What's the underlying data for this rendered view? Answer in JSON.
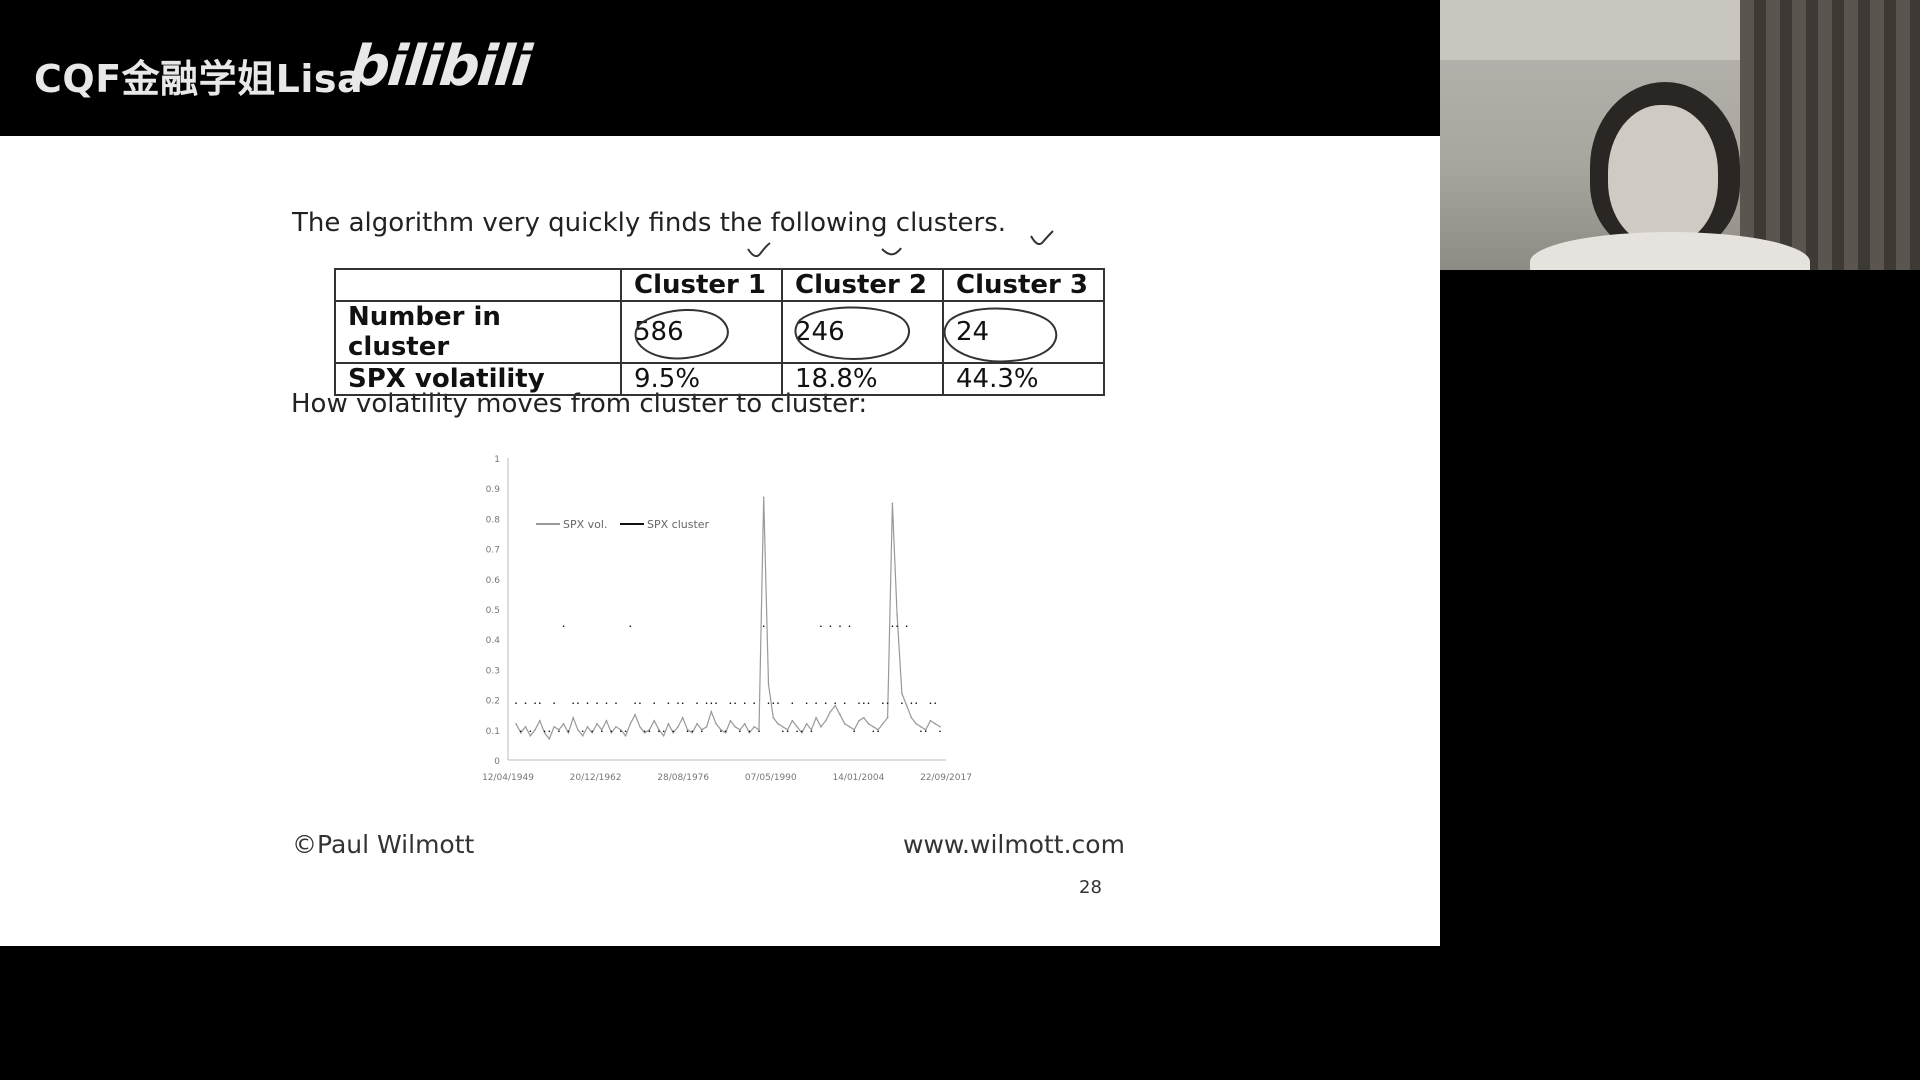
{
  "channel": {
    "name": "CQF金融学姐Lisa",
    "logo": "bilibili"
  },
  "slide": {
    "intro": "The algorithm very quickly finds the following clusters.",
    "table": {
      "headers": [
        "",
        "Cluster 1",
        "Cluster 2",
        "Cluster 3"
      ],
      "rows": [
        [
          "Number in cluster",
          "586",
          "246",
          "24"
        ],
        [
          "SPX volatility",
          "9.5%",
          "18.8%",
          "44.3%"
        ]
      ]
    },
    "subheading": "How volatility moves from cluster to cluster:",
    "footer_left": "©Paul Wilmott",
    "footer_right": "www.wilmott.com",
    "page_number": "28"
  },
  "chart_data": {
    "type": "line",
    "title": "",
    "xlabel": "",
    "ylabel": "",
    "ylim": [
      0,
      1
    ],
    "yticks": [
      "0",
      "0.1",
      "0.2",
      "0.3",
      "0.4",
      "0.5",
      "0.6",
      "0.7",
      "0.8",
      "0.9",
      "1"
    ],
    "xticks": [
      "12/04/1949",
      "20/12/1962",
      "28/08/1976",
      "07/05/1990",
      "14/01/2004",
      "22/09/2017"
    ],
    "legend": [
      "SPX vol.",
      "SPX cluster"
    ],
    "legend_position": "top-left",
    "cluster_levels": [
      0.095,
      0.188,
      0.443
    ],
    "series": [
      {
        "name": "SPX vol.",
        "color": "#999999",
        "values": [
          0.12,
          0.09,
          0.11,
          0.08,
          0.1,
          0.13,
          0.09,
          0.07,
          0.11,
          0.1,
          0.12,
          0.09,
          0.14,
          0.1,
          0.08,
          0.11,
          0.09,
          0.12,
          0.1,
          0.13,
          0.09,
          0.11,
          0.1,
          0.08,
          0.12,
          0.15,
          0.11,
          0.09,
          0.1,
          0.13,
          0.1,
          0.08,
          0.12,
          0.09,
          0.11,
          0.14,
          0.1,
          0.09,
          0.12,
          0.1,
          0.11,
          0.16,
          0.12,
          0.1,
          0.09,
          0.13,
          0.11,
          0.1,
          0.12,
          0.09,
          0.11,
          0.1,
          0.87,
          0.25,
          0.14,
          0.12,
          0.11,
          0.1,
          0.13,
          0.11,
          0.09,
          0.12,
          0.1,
          0.14,
          0.11,
          0.13,
          0.16,
          0.18,
          0.15,
          0.12,
          0.11,
          0.1,
          0.13,
          0.14,
          0.12,
          0.11,
          0.1,
          0.12,
          0.14,
          0.85,
          0.48,
          0.22,
          0.18,
          0.14,
          0.12,
          0.11,
          0.1,
          0.13,
          0.12,
          0.11
        ]
      },
      {
        "name": "SPX cluster",
        "color": "#111111",
        "values": [
          0.188,
          0.095,
          0.188,
          0.095,
          0.188,
          0.188,
          0.095,
          0.095,
          0.188,
          0.095,
          0.443,
          0.095,
          0.188,
          0.188,
          0.095,
          0.188,
          0.095,
          0.188,
          0.095,
          0.188,
          0.095,
          0.188,
          0.095,
          0.095,
          0.443,
          0.188,
          0.188,
          0.095,
          0.095,
          0.188,
          0.095,
          0.095,
          0.188,
          0.095,
          0.188,
          0.188,
          0.095,
          0.095,
          0.188,
          0.095,
          0.188,
          0.188,
          0.188,
          0.095,
          0.095,
          0.188,
          0.188,
          0.095,
          0.188,
          0.095,
          0.188,
          0.095,
          0.443,
          0.188,
          0.188,
          0.188,
          0.095,
          0.095,
          0.188,
          0.095,
          0.095,
          0.188,
          0.095,
          0.188,
          0.443,
          0.188,
          0.443,
          0.188,
          0.443,
          0.188,
          0.443,
          0.095,
          0.188,
          0.188,
          0.188,
          0.095,
          0.095,
          0.188,
          0.188,
          0.443,
          0.443,
          0.188,
          0.443,
          0.188,
          0.188,
          0.095,
          0.095,
          0.188,
          0.188,
          0.095
        ]
      }
    ]
  }
}
